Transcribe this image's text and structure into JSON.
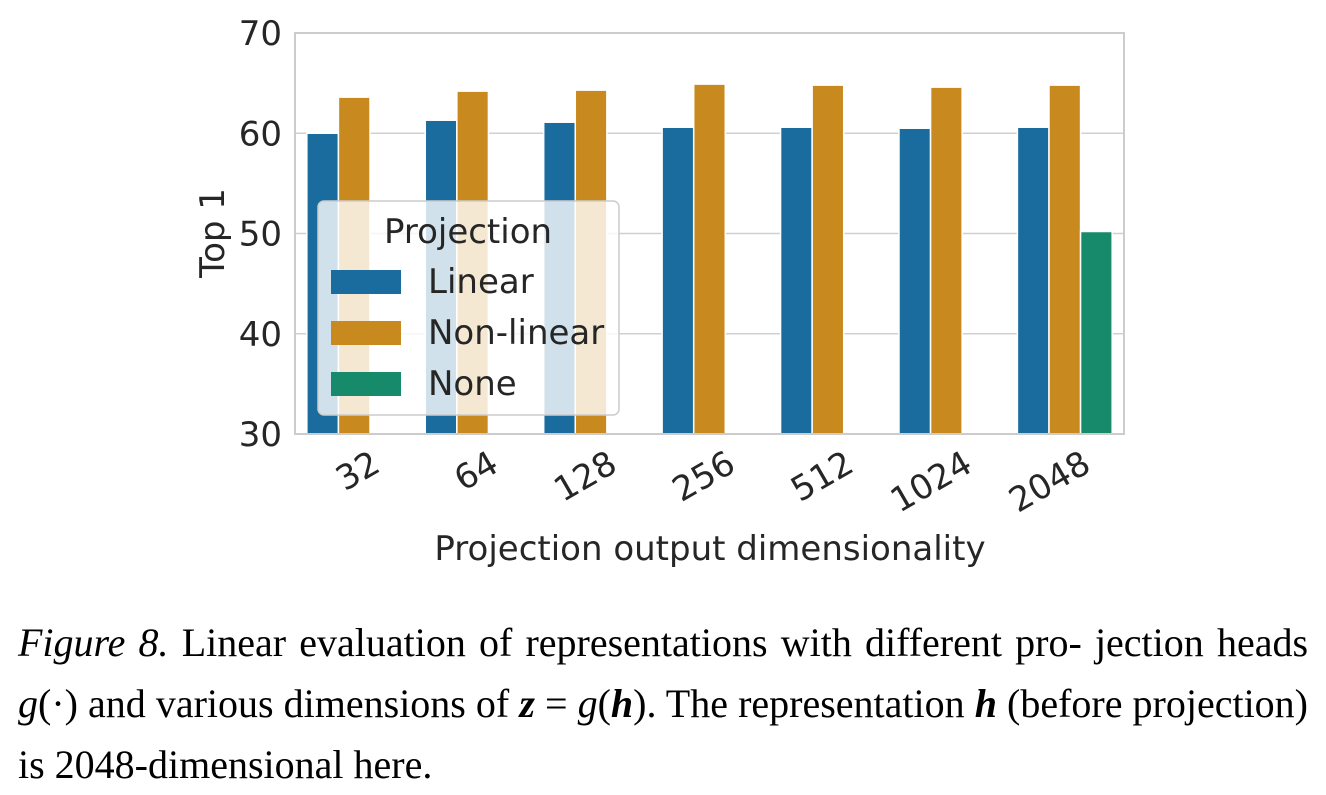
{
  "chart_data": {
    "type": "bar",
    "categories": [
      "32",
      "64",
      "128",
      "256",
      "512",
      "1024",
      "2048"
    ],
    "series": [
      {
        "name": "Linear",
        "color": "#1a6c9e",
        "values": [
          60.0,
          61.3,
          61.1,
          60.6,
          60.6,
          60.5,
          60.6
        ]
      },
      {
        "name": "Non-linear",
        "color": "#c88a1f",
        "values": [
          63.6,
          64.2,
          64.3,
          64.9,
          64.8,
          64.6,
          64.8
        ]
      },
      {
        "name": "None",
        "color": "#168a6a",
        "values": [
          null,
          null,
          null,
          null,
          null,
          null,
          50.2
        ]
      }
    ],
    "xlabel": "Projection output dimensionality",
    "ylabel": "Top 1",
    "ylim": [
      30,
      70
    ],
    "yticks": [
      "30",
      "40",
      "50",
      "60",
      "70"
    ],
    "grid": "horizontal",
    "legend": {
      "title": "Projection",
      "placement": "center-left"
    }
  },
  "caption": {
    "lead": "Figure 8.",
    "line1_text": " Linear evaluation of representations with different pro-",
    "line2_a": "jection heads ",
    "line2_g": "g",
    "line2_dot": "(·)",
    "line2_b": " and various dimensions of ",
    "line2_z": "z",
    "line2_eq": " = ",
    "line2_g2": "g",
    "line2_po": "(",
    "line2_h": "h",
    "line2_pc": ").",
    "line2_c": " The",
    "line3_a": "representation ",
    "line3_h": "h",
    "line3_b": " (before projection) is 2048-dimensional here."
  }
}
